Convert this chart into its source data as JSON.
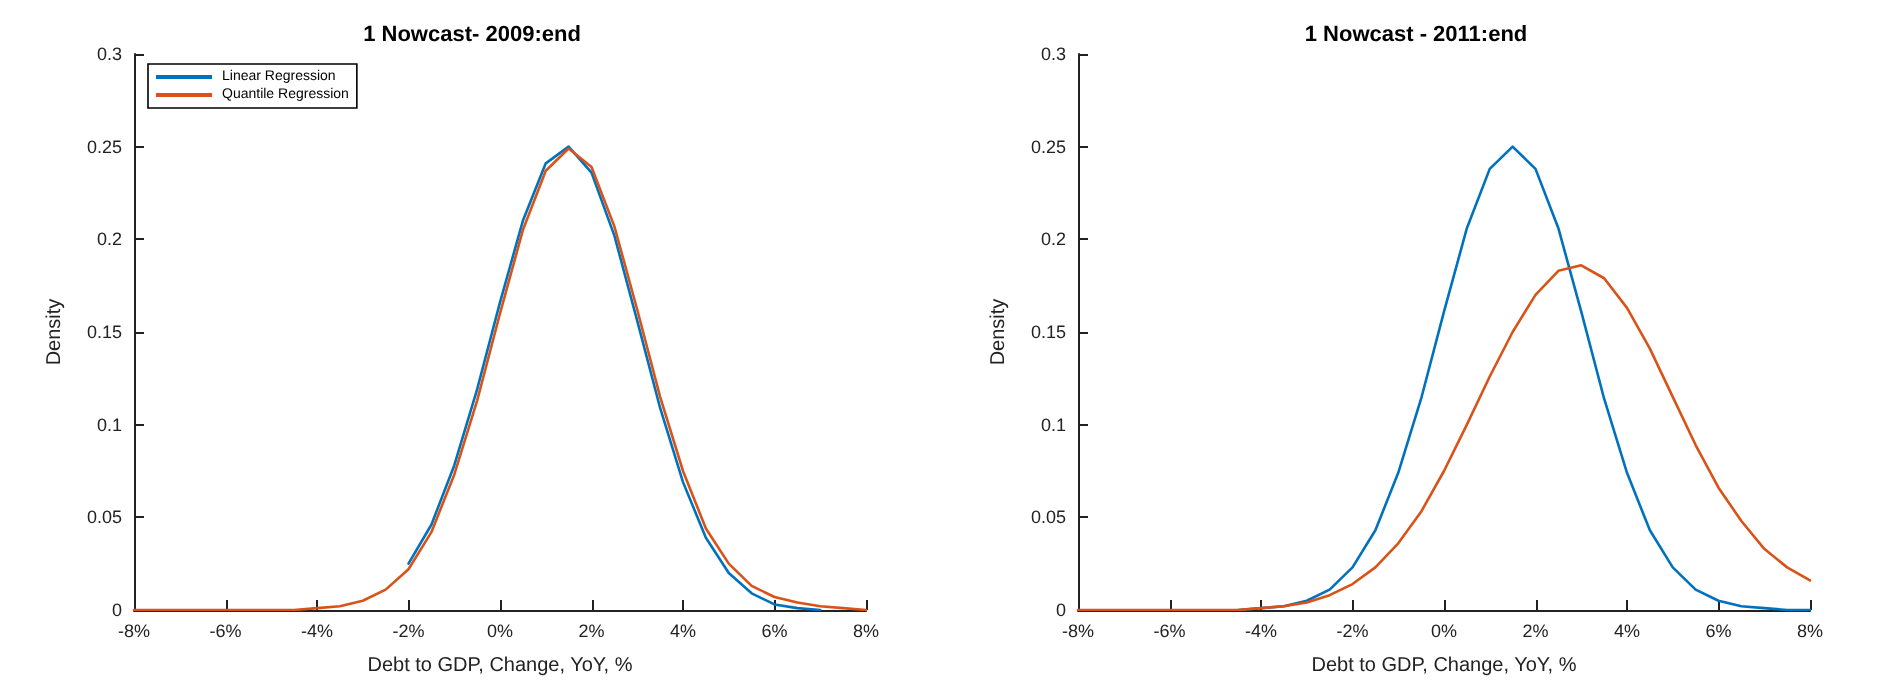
{
  "chart_data": [
    {
      "type": "line",
      "title": "1 Nowcast- 2009:end",
      "xlabel": "Debt to GDP, Change, YoY, %",
      "ylabel": "Density",
      "x": [
        -8,
        -7.5,
        -7,
        -6.5,
        -6,
        -5.5,
        -5,
        -4.5,
        -4,
        -3.5,
        -3,
        -2.5,
        -2,
        -1.5,
        -1,
        -0.5,
        0,
        0.5,
        1,
        1.5,
        2,
        2.5,
        3,
        3.5,
        4,
        4.5,
        5,
        5.5,
        6,
        6.5,
        7,
        7.5,
        8
      ],
      "series": [
        {
          "name": "Linear Regression",
          "color": "#0072bd",
          "values": [
            null,
            null,
            null,
            null,
            null,
            null,
            null,
            null,
            null,
            null,
            null,
            null,
            0.025,
            0.046,
            0.078,
            0.119,
            0.166,
            0.21,
            0.241,
            0.25,
            0.236,
            0.202,
            0.156,
            0.109,
            0.069,
            0.039,
            0.02,
            0.009,
            0.003,
            0.001,
            0,
            null,
            null
          ]
        },
        {
          "name": "Quantile Regression",
          "color": "#d95319",
          "values": [
            0,
            0,
            0,
            0,
            0,
            0,
            0,
            0,
            0.001,
            0.002,
            0.005,
            0.011,
            0.022,
            0.042,
            0.073,
            0.113,
            0.16,
            0.205,
            0.237,
            0.249,
            0.239,
            0.207,
            0.162,
            0.115,
            0.075,
            0.044,
            0.025,
            0.013,
            0.007,
            0.004,
            0.002,
            0.001,
            0
          ]
        }
      ],
      "xlim": [
        -8,
        8
      ],
      "xticks": [
        {
          "value": -8,
          "label": "-8%"
        },
        {
          "value": -6,
          "label": "-6%"
        },
        {
          "value": -4,
          "label": "-4%"
        },
        {
          "value": -2,
          "label": "-2%"
        },
        {
          "value": 0,
          "label": "0%"
        },
        {
          "value": 2,
          "label": "2%"
        },
        {
          "value": 4,
          "label": "4%"
        },
        {
          "value": 6,
          "label": "6%"
        },
        {
          "value": 8,
          "label": "8%"
        }
      ],
      "ylim": [
        0,
        0.3
      ],
      "yticks": [
        0,
        0.05,
        0.1,
        0.15,
        0.2,
        0.25,
        0.3
      ],
      "legend": "top left",
      "grid": false
    },
    {
      "type": "line",
      "title": "1 Nowcast - 2011:end",
      "xlabel": "Debt to GDP, Change, YoY, %",
      "ylabel": "Density",
      "x": [
        -8,
        -7.5,
        -7,
        -6.5,
        -6,
        -5.5,
        -5,
        -4.5,
        -4,
        -3.5,
        -3,
        -2.5,
        -2,
        -1.5,
        -1,
        -0.5,
        0,
        0.5,
        1,
        1.5,
        2,
        2.5,
        3,
        3.5,
        4,
        4.5,
        5,
        5.5,
        6,
        6.5,
        7,
        7.5,
        8
      ],
      "series": [
        {
          "color": "#0072bd",
          "values": [
            null,
            null,
            null,
            null,
            null,
            null,
            null,
            0,
            0.001,
            0.002,
            0.005,
            0.011,
            0.023,
            0.043,
            0.074,
            0.114,
            0.161,
            0.206,
            0.238,
            0.25,
            0.238,
            0.206,
            0.161,
            0.114,
            0.074,
            0.043,
            0.023,
            0.011,
            0.005,
            0.002,
            0.001,
            0,
            0
          ]
        },
        {
          "color": "#d95319",
          "values": [
            0,
            0,
            0,
            0,
            0,
            0,
            0,
            0,
            0.001,
            0.002,
            0.004,
            0.008,
            0.014,
            0.023,
            0.036,
            0.053,
            0.075,
            0.1,
            0.126,
            0.15,
            0.17,
            0.183,
            0.186,
            0.179,
            0.163,
            0.141,
            0.115,
            0.089,
            0.066,
            0.048,
            0.033,
            0.023,
            0.016
          ]
        }
      ],
      "xlim": [
        -8,
        8
      ],
      "xticks": [
        {
          "value": -8,
          "label": "-8%"
        },
        {
          "value": -6,
          "label": "-6%"
        },
        {
          "value": -4,
          "label": "-4%"
        },
        {
          "value": -2,
          "label": "-2%"
        },
        {
          "value": 0,
          "label": "0%"
        },
        {
          "value": 2,
          "label": "2%"
        },
        {
          "value": 4,
          "label": "4%"
        },
        {
          "value": 6,
          "label": "6%"
        },
        {
          "value": 8,
          "label": "8%"
        }
      ],
      "ylim": [
        0,
        0.3
      ],
      "yticks": [
        0,
        0.05,
        0.1,
        0.15,
        0.2,
        0.25,
        0.3
      ],
      "legend": false,
      "grid": false
    }
  ]
}
